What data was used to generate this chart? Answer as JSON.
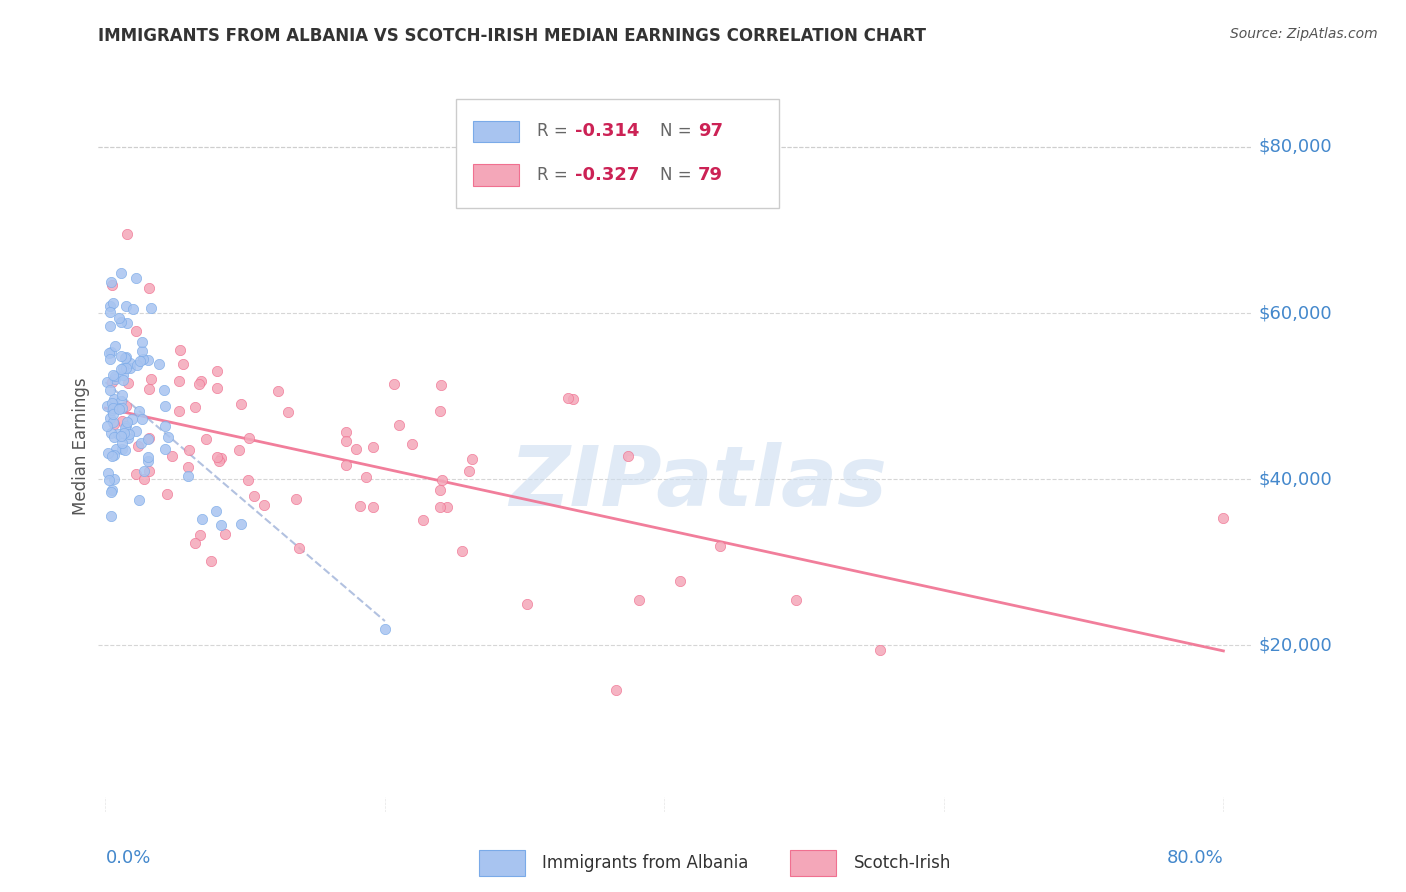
{
  "title": "IMMIGRANTS FROM ALBANIA VS SCOTCH-IRISH MEDIAN EARNINGS CORRELATION CHART",
  "source": "Source: ZipAtlas.com",
  "ylabel": "Median Earnings",
  "albania_color": "#a8c4f0",
  "albania_edge_color": "#7aaae8",
  "scotch_irish_color": "#f4a7b9",
  "scotch_irish_edge_color": "#f07090",
  "albania_line_color": "#aabbdd",
  "scotch_irish_line_color": "#f07090",
  "grid_color": "#cccccc",
  "axis_label_color": "#4488cc",
  "title_color": "#333333",
  "watermark_color": "#ccddf0",
  "legend_r1": "-0.314",
  "legend_n1": "97",
  "legend_r2": "-0.327",
  "legend_n2": "79",
  "ytick_vals": [
    20000,
    40000,
    60000,
    80000
  ],
  "ytick_labels": [
    "$20,000",
    "$40,000",
    "$60,000",
    "$80,000"
  ],
  "xlim": [
    -0.005,
    0.82
  ],
  "ylim": [
    0,
    88000
  ],
  "albania_n": 97,
  "scotch_n": 79,
  "seed": 12345
}
